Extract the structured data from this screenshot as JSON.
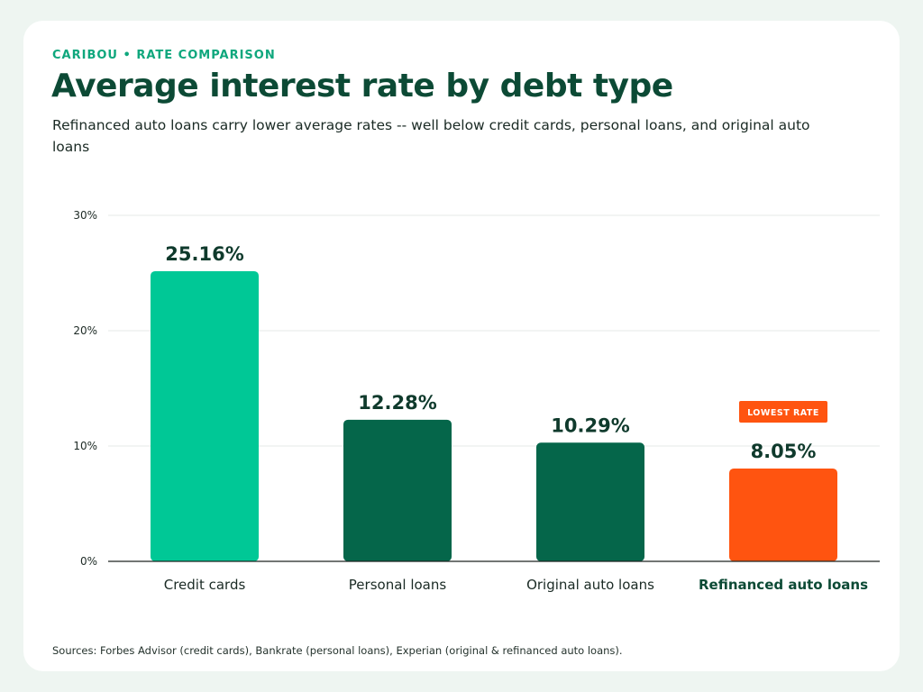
{
  "header": {
    "eyebrow": "CARIBOU • RATE COMPARISON",
    "title": "Average interest rate by debt type",
    "subtitle": "Refinanced auto loans carry lower average rates -- well below credit cards, personal loans, and original auto loans"
  },
  "chart_data": {
    "type": "bar",
    "categories": [
      "Credit cards",
      "Personal loans",
      "Original auto loans",
      "Refinanced auto loans"
    ],
    "values": [
      25.16,
      12.28,
      10.29,
      8.05
    ],
    "value_labels": [
      "25.16%",
      "12.28%",
      "10.29%",
      "8.05%"
    ],
    "ylim": [
      0,
      30
    ],
    "yticks": [
      0,
      10,
      20,
      30
    ],
    "ytick_labels": [
      "0%",
      "10%",
      "20%",
      "30%"
    ],
    "grid": true,
    "bar_colors": [
      "#00c896",
      "#05664a",
      "#05664a",
      "#ff5410"
    ],
    "highlight": {
      "category_index": 3,
      "badge": "LOWEST RATE",
      "color": "#ff5410"
    }
  },
  "footer": {
    "source": "Sources: Forbes Advisor (credit cards), Bankrate (personal loans), Experian (original & refinanced auto loans)."
  },
  "colors": {
    "background": "#eef5f1",
    "title": "#0c4a35",
    "accent": "#0fa77d",
    "value_label": "#0f3a2c"
  }
}
